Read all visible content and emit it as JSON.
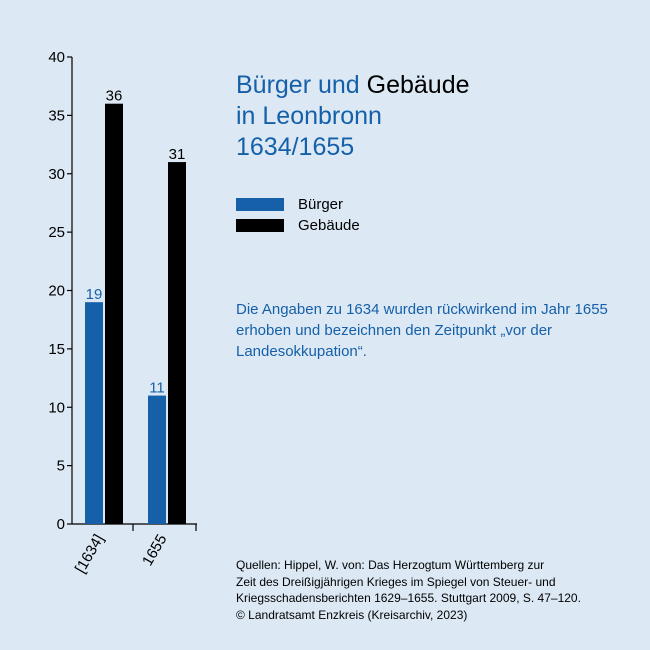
{
  "title": {
    "part1": "Bürger und ",
    "part2": "Gebäude",
    "line2": "in Leonbronn",
    "line3": "1634/1655"
  },
  "colors": {
    "buerger": "#1560a8",
    "gebaeude": "#000000",
    "background": "#dce9f5"
  },
  "note": "Die Angaben zu 1634 wurden rückwirkend im Jahr 1655 erhoben und bezeichnen den Zeitpunkt „vor der Landesokkupation“.",
  "sources": [
    "Quellen: Hippel, W. von: Das Herzogtum Württemberg zur",
    "Zeit des Dreißigjährigen Krieges im Spiegel von Steuer- und",
    "Kriegsschadensberichten 1629–1655. Stuttgart 2009, S. 47–120.",
    "© Landratsamt Enzkreis (Kreisarchiv, 2023)"
  ],
  "chart_data": {
    "type": "bar",
    "categories": [
      "[1634]",
      "1655"
    ],
    "series": [
      {
        "name": "Bürger",
        "values": [
          19,
          11
        ],
        "color": "#1560a8"
      },
      {
        "name": "Gebäude",
        "values": [
          36,
          31
        ],
        "color": "#000000"
      }
    ],
    "ylim": [
      0,
      40
    ],
    "yticks": [
      "0",
      "5",
      "10",
      "15",
      "20",
      "25",
      "30",
      "35",
      "40"
    ],
    "legend": "right"
  }
}
